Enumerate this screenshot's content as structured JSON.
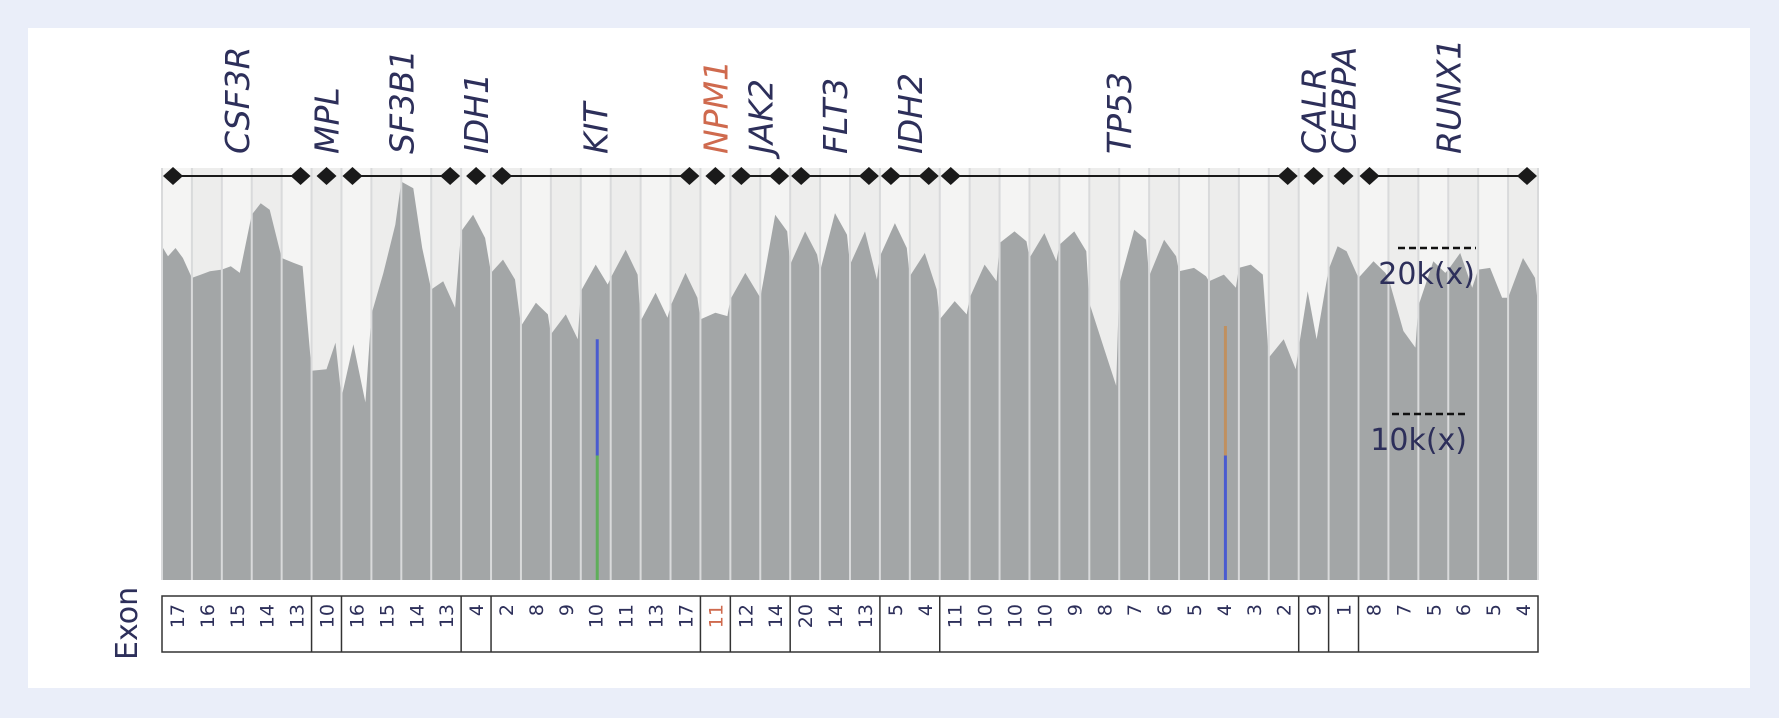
{
  "colors": {
    "background": "#eaeef9",
    "card": "#ffffff",
    "coverage_fill": "#a3a6a7",
    "track_background": "#f4f4f3",
    "gene_label": "#2d2f5a",
    "highlight_gene": "#cf6a4e",
    "diamond": "#1a1a1a",
    "variant_blue": "#4a5bd0",
    "variant_green": "#5fae5a",
    "variant_orange": "#c0905f"
  },
  "chart_data": {
    "type": "area",
    "title": "",
    "xlabel": "Exon",
    "ylabel": "",
    "y_unit": "k(x)",
    "scale_markers": [
      {
        "label": "20k(x)",
        "value": 20
      },
      {
        "label": "10k(x)",
        "value": 10
      }
    ],
    "genes": [
      {
        "name": "CSF3R",
        "exons": [
          "17",
          "16",
          "15",
          "14",
          "13"
        ]
      },
      {
        "name": "MPL",
        "exons": [
          "10"
        ]
      },
      {
        "name": "SF3B1",
        "exons": [
          "16",
          "15",
          "14",
          "13"
        ]
      },
      {
        "name": "IDH1",
        "exons": [
          "4"
        ]
      },
      {
        "name": "KIT",
        "exons": [
          "2",
          "8",
          "9",
          "10",
          "11",
          "13",
          "17"
        ]
      },
      {
        "name": "NPM1",
        "exons": [
          "11"
        ],
        "highlight": true
      },
      {
        "name": "JAK2",
        "exons": [
          "12",
          "14"
        ]
      },
      {
        "name": "FLT3",
        "exons": [
          "20",
          "14",
          "13"
        ]
      },
      {
        "name": "IDH2",
        "exons": [
          "5",
          "4"
        ]
      },
      {
        "name": "TP53",
        "exons": [
          "11",
          "10",
          "10",
          "10",
          "9",
          "8",
          "7",
          "6",
          "5",
          "4",
          "3",
          "2"
        ]
      },
      {
        "name": "CALR",
        "exons": [
          "9"
        ]
      },
      {
        "name": "CEBPA",
        "exons": [
          "1"
        ]
      },
      {
        "name": "RUNX1",
        "exons": [
          "8",
          "7",
          "5",
          "6",
          "5",
          "4"
        ]
      }
    ],
    "coverage_profile_k": [
      [
        0,
        20.1
      ],
      [
        0.2,
        19.5
      ],
      [
        0.45,
        20.0
      ],
      [
        0.7,
        19.4
      ],
      [
        1,
        18.2
      ],
      [
        1.3,
        18.4
      ],
      [
        1.6,
        18.6
      ],
      [
        2,
        18.7
      ],
      [
        2.3,
        18.9
      ],
      [
        2.6,
        18.5
      ],
      [
        3,
        22.0
      ],
      [
        3.3,
        22.7
      ],
      [
        3.6,
        22.3
      ],
      [
        4,
        19.4
      ],
      [
        4.4,
        19.1
      ],
      [
        4.7,
        18.9
      ],
      [
        5,
        12.6
      ],
      [
        5.5,
        12.7
      ],
      [
        5.8,
        14.3
      ],
      [
        6,
        11.0
      ],
      [
        6.4,
        14.2
      ],
      [
        6.8,
        10.7
      ],
      [
        7,
        16.0
      ],
      [
        7.4,
        18.5
      ],
      [
        7.8,
        21.4
      ],
      [
        8,
        24.0
      ],
      [
        8.4,
        23.6
      ],
      [
        8.7,
        20.0
      ],
      [
        9,
        17.5
      ],
      [
        9.4,
        18.0
      ],
      [
        9.8,
        16.4
      ],
      [
        10,
        21.0
      ],
      [
        10.4,
        22.0
      ],
      [
        10.8,
        20.6
      ],
      [
        11,
        18.5
      ],
      [
        11.4,
        19.3
      ],
      [
        11.8,
        18.1
      ],
      [
        12,
        15.3
      ],
      [
        12.5,
        16.7
      ],
      [
        12.9,
        16.0
      ],
      [
        13,
        14.8
      ],
      [
        13.5,
        16.0
      ],
      [
        13.9,
        14.5
      ],
      [
        14,
        17.4
      ],
      [
        14.5,
        19.0
      ],
      [
        14.9,
        17.8
      ],
      [
        15,
        18.2
      ],
      [
        15.5,
        19.9
      ],
      [
        15.9,
        18.4
      ],
      [
        16,
        15.6
      ],
      [
        16.5,
        17.3
      ],
      [
        16.9,
        15.8
      ],
      [
        17,
        16.5
      ],
      [
        17.5,
        18.5
      ],
      [
        17.9,
        17.0
      ],
      [
        18,
        15.7
      ],
      [
        18.5,
        16.1
      ],
      [
        18.9,
        15.9
      ],
      [
        19,
        16.9
      ],
      [
        19.5,
        18.5
      ],
      [
        19.9,
        17.3
      ],
      [
        20,
        17.0
      ],
      [
        20.5,
        22.0
      ],
      [
        20.9,
        21.0
      ],
      [
        21,
        19.0
      ],
      [
        21.5,
        21.0
      ],
      [
        21.9,
        19.6
      ],
      [
        22,
        18.6
      ],
      [
        22.5,
        22.1
      ],
      [
        22.9,
        20.8
      ],
      [
        23,
        19.0
      ],
      [
        23.5,
        21.0
      ],
      [
        23.9,
        18.1
      ],
      [
        24,
        19.5
      ],
      [
        24.5,
        21.5
      ],
      [
        24.9,
        20.0
      ],
      [
        25,
        18.3
      ],
      [
        25.5,
        19.7
      ],
      [
        25.9,
        17.5
      ],
      [
        26,
        15.7
      ],
      [
        26.5,
        16.8
      ],
      [
        26.9,
        16.0
      ],
      [
        27,
        17.0
      ],
      [
        27.5,
        19.0
      ],
      [
        27.9,
        18.0
      ],
      [
        28,
        20.3
      ],
      [
        28.5,
        21.0
      ],
      [
        28.9,
        20.4
      ],
      [
        29,
        19.4
      ],
      [
        29.5,
        20.9
      ],
      [
        29.9,
        19.2
      ],
      [
        30,
        20.2
      ],
      [
        30.5,
        21.0
      ],
      [
        30.9,
        19.8
      ],
      [
        31,
        16.7
      ],
      [
        31.5,
        13.9
      ],
      [
        31.9,
        11.7
      ],
      [
        32,
        17.8
      ],
      [
        32.5,
        21.1
      ],
      [
        32.9,
        20.5
      ],
      [
        33,
        18.3
      ],
      [
        33.5,
        20.5
      ],
      [
        33.9,
        19.5
      ],
      [
        34,
        18.6
      ],
      [
        34.5,
        18.8
      ],
      [
        34.9,
        18.3
      ],
      [
        35,
        18.0
      ],
      [
        35.5,
        18.4
      ],
      [
        35.9,
        17.6
      ],
      [
        36,
        18.8
      ],
      [
        36.4,
        19.0
      ],
      [
        36.8,
        18.4
      ],
      [
        37,
        13.4
      ],
      [
        37.5,
        14.5
      ],
      [
        37.9,
        12.7
      ],
      [
        38,
        14.0
      ],
      [
        38.3,
        17.4
      ],
      [
        38.6,
        14.5
      ],
      [
        39,
        18.7
      ],
      [
        39.3,
        20.1
      ],
      [
        39.6,
        19.8
      ],
      [
        40,
        18.2
      ],
      [
        40.5,
        19.2
      ],
      [
        40.9,
        18.5
      ],
      [
        41,
        18.2
      ],
      [
        41.5,
        15.0
      ],
      [
        41.9,
        14.0
      ],
      [
        42,
        16.5
      ],
      [
        42.5,
        19.2
      ],
      [
        42.9,
        18.5
      ],
      [
        43,
        18.7
      ],
      [
        43.4,
        19.7
      ],
      [
        43.8,
        17.6
      ],
      [
        44,
        18.7
      ],
      [
        44.4,
        18.8
      ],
      [
        44.8,
        17.0
      ],
      [
        45,
        17.0
      ],
      [
        45.5,
        19.4
      ],
      [
        45.9,
        18.2
      ],
      [
        46,
        16.6
      ],
      [
        46,
        16.6
      ]
    ],
    "variants": [
      {
        "x": 14.55,
        "segments": [
          {
            "from": 0,
            "to": 7.5,
            "color": "green"
          },
          {
            "from": 7.5,
            "to": 14.5,
            "color": "blue"
          }
        ]
      },
      {
        "x": 35.55,
        "segments": [
          {
            "from": 0,
            "to": 7.5,
            "color": "blue"
          },
          {
            "from": 7.5,
            "to": 15.3,
            "color": "orange"
          }
        ]
      }
    ]
  }
}
